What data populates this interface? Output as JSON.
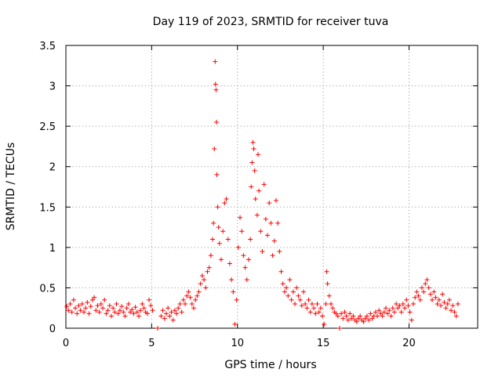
{
  "chart_data": {
    "type": "scatter",
    "title": "Day 119 of 2023, SRMTID for receiver tuva",
    "xlabel": "GPS time / hours",
    "ylabel": "SRMTID / TECUs",
    "xlim": [
      0,
      24
    ],
    "ylim": [
      0,
      3.5
    ],
    "xticks": [
      0,
      5,
      10,
      15,
      20
    ],
    "xtick_labels": [
      "0",
      "5",
      "10",
      "15",
      "20"
    ],
    "yticks": [
      0,
      0.5,
      1,
      1.5,
      2,
      2.5,
      3,
      3.5
    ],
    "ytick_labels": [
      "0",
      "0.5",
      "1",
      "1.5",
      "2",
      "2.5",
      "3",
      "3.5"
    ],
    "grid": true,
    "marker": "plus",
    "color": "#ff0000",
    "series": [
      {
        "name": "SRMTID",
        "points": [
          [
            0.05,
            0.27
          ],
          [
            0.15,
            0.22
          ],
          [
            0.25,
            0.3
          ],
          [
            0.35,
            0.2
          ],
          [
            0.45,
            0.35
          ],
          [
            0.55,
            0.25
          ],
          [
            0.65,
            0.18
          ],
          [
            0.75,
            0.28
          ],
          [
            0.85,
            0.22
          ],
          [
            0.95,
            0.3
          ],
          [
            1.05,
            0.2
          ],
          [
            1.15,
            0.25
          ],
          [
            1.25,
            0.32
          ],
          [
            1.35,
            0.18
          ],
          [
            1.45,
            0.27
          ],
          [
            1.55,
            0.35
          ],
          [
            1.65,
            0.38
          ],
          [
            1.75,
            0.22
          ],
          [
            1.85,
            0.28
          ],
          [
            1.95,
            0.2
          ],
          [
            2.05,
            0.3
          ],
          [
            2.15,
            0.25
          ],
          [
            2.25,
            0.35
          ],
          [
            2.35,
            0.18
          ],
          [
            2.45,
            0.22
          ],
          [
            2.55,
            0.28
          ],
          [
            2.65,
            0.15
          ],
          [
            2.75,
            0.25
          ],
          [
            2.85,
            0.2
          ],
          [
            2.95,
            0.3
          ],
          [
            3.05,
            0.18
          ],
          [
            3.15,
            0.22
          ],
          [
            3.25,
            0.27
          ],
          [
            3.35,
            0.2
          ],
          [
            3.45,
            0.15
          ],
          [
            3.55,
            0.25
          ],
          [
            3.65,
            0.3
          ],
          [
            3.75,
            0.2
          ],
          [
            3.85,
            0.23
          ],
          [
            3.95,
            0.18
          ],
          [
            4.05,
            0.26
          ],
          [
            4.15,
            0.2
          ],
          [
            4.25,
            0.15
          ],
          [
            4.35,
            0.22
          ],
          [
            4.45,
            0.3
          ],
          [
            4.55,
            0.25
          ],
          [
            4.65,
            0.2
          ],
          [
            4.75,
            0.18
          ],
          [
            4.85,
            0.35
          ],
          [
            4.95,
            0.28
          ],
          [
            5.05,
            0.22
          ],
          [
            5.35,
            0.0
          ],
          [
            5.55,
            0.15
          ],
          [
            5.65,
            0.22
          ],
          [
            5.75,
            0.12
          ],
          [
            5.85,
            0.18
          ],
          [
            5.95,
            0.25
          ],
          [
            6.05,
            0.15
          ],
          [
            6.15,
            0.2
          ],
          [
            6.25,
            0.1
          ],
          [
            6.35,
            0.22
          ],
          [
            6.45,
            0.18
          ],
          [
            6.55,
            0.25
          ],
          [
            6.65,
            0.3
          ],
          [
            6.75,
            0.2
          ],
          [
            6.85,
            0.35
          ],
          [
            6.95,
            0.3
          ],
          [
            7.05,
            0.4
          ],
          [
            7.15,
            0.45
          ],
          [
            7.25,
            0.38
          ],
          [
            7.35,
            0.3
          ],
          [
            7.45,
            0.25
          ],
          [
            7.55,
            0.35
          ],
          [
            7.65,
            0.4
          ],
          [
            7.75,
            0.45
          ],
          [
            7.85,
            0.55
          ],
          [
            7.95,
            0.65
          ],
          [
            8.05,
            0.6
          ],
          [
            8.15,
            0.5
          ],
          [
            8.25,
            0.7
          ],
          [
            8.35,
            0.75
          ],
          [
            8.45,
            0.9
          ],
          [
            8.55,
            1.1
          ],
          [
            8.6,
            1.3
          ],
          [
            8.65,
            2.22
          ],
          [
            8.7,
            3.3
          ],
          [
            8.72,
            3.02
          ],
          [
            8.75,
            2.95
          ],
          [
            8.78,
            2.55
          ],
          [
            8.8,
            1.9
          ],
          [
            8.85,
            1.5
          ],
          [
            8.9,
            1.25
          ],
          [
            8.95,
            1.05
          ],
          [
            9.05,
            0.85
          ],
          [
            9.15,
            1.2
          ],
          [
            9.25,
            1.55
          ],
          [
            9.35,
            1.6
          ],
          [
            9.45,
            1.1
          ],
          [
            9.55,
            0.8
          ],
          [
            9.65,
            0.6
          ],
          [
            9.75,
            0.45
          ],
          [
            9.85,
            0.05
          ],
          [
            9.95,
            0.35
          ],
          [
            10.05,
            1.0
          ],
          [
            10.15,
            1.37
          ],
          [
            10.25,
            1.2
          ],
          [
            10.35,
            0.9
          ],
          [
            10.45,
            0.75
          ],
          [
            10.55,
            0.6
          ],
          [
            10.65,
            0.85
          ],
          [
            10.75,
            1.1
          ],
          [
            10.8,
            1.75
          ],
          [
            10.85,
            2.05
          ],
          [
            10.9,
            2.3
          ],
          [
            10.95,
            2.22
          ],
          [
            11.0,
            1.95
          ],
          [
            11.05,
            1.6
          ],
          [
            11.15,
            1.4
          ],
          [
            11.2,
            2.15
          ],
          [
            11.25,
            1.7
          ],
          [
            11.35,
            1.2
          ],
          [
            11.45,
            0.95
          ],
          [
            11.55,
            1.78
          ],
          [
            11.65,
            1.35
          ],
          [
            11.75,
            1.15
          ],
          [
            11.85,
            1.55
          ],
          [
            11.95,
            1.3
          ],
          [
            12.05,
            0.9
          ],
          [
            12.15,
            1.08
          ],
          [
            12.25,
            1.58
          ],
          [
            12.35,
            1.3
          ],
          [
            12.45,
            0.95
          ],
          [
            12.55,
            0.7
          ],
          [
            12.65,
            0.55
          ],
          [
            12.75,
            0.45
          ],
          [
            12.85,
            0.5
          ],
          [
            12.95,
            0.4
          ],
          [
            13.05,
            0.6
          ],
          [
            13.15,
            0.35
          ],
          [
            13.25,
            0.45
          ],
          [
            13.35,
            0.3
          ],
          [
            13.45,
            0.5
          ],
          [
            13.55,
            0.4
          ],
          [
            13.65,
            0.35
          ],
          [
            13.75,
            0.28
          ],
          [
            13.85,
            0.45
          ],
          [
            13.95,
            0.3
          ],
          [
            14.05,
            0.25
          ],
          [
            14.15,
            0.35
          ],
          [
            14.25,
            0.2
          ],
          [
            14.35,
            0.3
          ],
          [
            14.45,
            0.25
          ],
          [
            14.55,
            0.18
          ],
          [
            14.65,
            0.3
          ],
          [
            14.75,
            0.2
          ],
          [
            14.85,
            0.25
          ],
          [
            14.95,
            0.15
          ],
          [
            15.05,
            0.05
          ],
          [
            15.15,
            0.3
          ],
          [
            15.2,
            0.7
          ],
          [
            15.25,
            0.55
          ],
          [
            15.35,
            0.4
          ],
          [
            15.45,
            0.3
          ],
          [
            15.55,
            0.25
          ],
          [
            15.65,
            0.2
          ],
          [
            15.75,
            0.18
          ],
          [
            15.85,
            0.15
          ],
          [
            15.95,
            0.0
          ],
          [
            16.05,
            0.18
          ],
          [
            16.15,
            0.12
          ],
          [
            16.25,
            0.2
          ],
          [
            16.35,
            0.15
          ],
          [
            16.45,
            0.1
          ],
          [
            16.55,
            0.18
          ],
          [
            16.65,
            0.12
          ],
          [
            16.75,
            0.15
          ],
          [
            16.85,
            0.1
          ],
          [
            16.95,
            0.08
          ],
          [
            17.05,
            0.12
          ],
          [
            17.15,
            0.15
          ],
          [
            17.25,
            0.1
          ],
          [
            17.35,
            0.08
          ],
          [
            17.45,
            0.12
          ],
          [
            17.55,
            0.15
          ],
          [
            17.65,
            0.1
          ],
          [
            17.75,
            0.18
          ],
          [
            17.85,
            0.12
          ],
          [
            17.95,
            0.15
          ],
          [
            18.05,
            0.2
          ],
          [
            18.15,
            0.15
          ],
          [
            18.25,
            0.22
          ],
          [
            18.35,
            0.18
          ],
          [
            18.45,
            0.15
          ],
          [
            18.55,
            0.2
          ],
          [
            18.65,
            0.25
          ],
          [
            18.75,
            0.18
          ],
          [
            18.85,
            0.22
          ],
          [
            18.95,
            0.15
          ],
          [
            19.05,
            0.25
          ],
          [
            19.15,
            0.2
          ],
          [
            19.25,
            0.3
          ],
          [
            19.35,
            0.25
          ],
          [
            19.45,
            0.28
          ],
          [
            19.55,
            0.2
          ],
          [
            19.65,
            0.3
          ],
          [
            19.75,
            0.25
          ],
          [
            19.85,
            0.35
          ],
          [
            19.95,
            0.28
          ],
          [
            20.05,
            0.2
          ],
          [
            20.15,
            0.1
          ],
          [
            20.25,
            0.3
          ],
          [
            20.35,
            0.38
          ],
          [
            20.45,
            0.45
          ],
          [
            20.55,
            0.4
          ],
          [
            20.65,
            0.35
          ],
          [
            20.75,
            0.5
          ],
          [
            20.85,
            0.45
          ],
          [
            20.95,
            0.55
          ],
          [
            21.05,
            0.6
          ],
          [
            21.15,
            0.5
          ],
          [
            21.25,
            0.42
          ],
          [
            21.35,
            0.35
          ],
          [
            21.45,
            0.45
          ],
          [
            21.55,
            0.38
          ],
          [
            21.65,
            0.3
          ],
          [
            21.75,
            0.35
          ],
          [
            21.85,
            0.28
          ],
          [
            21.95,
            0.42
          ],
          [
            22.05,
            0.32
          ],
          [
            22.15,
            0.25
          ],
          [
            22.25,
            0.3
          ],
          [
            22.35,
            0.35
          ],
          [
            22.45,
            0.22
          ],
          [
            22.55,
            0.28
          ],
          [
            22.65,
            0.2
          ],
          [
            22.75,
            0.15
          ],
          [
            22.85,
            0.3
          ]
        ]
      }
    ]
  }
}
